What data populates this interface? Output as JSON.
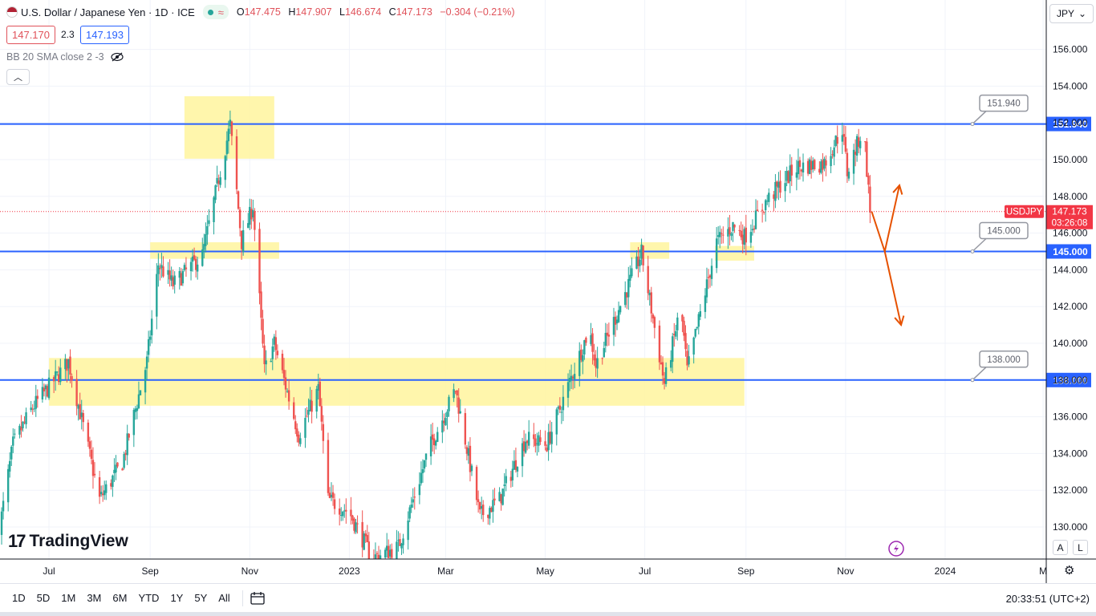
{
  "legend": {
    "title": "U.S. Dollar / Japanese Yen · 1D · ICE",
    "ohlc": {
      "o_label": "O",
      "o": "147.475",
      "h_label": "H",
      "h": "147.907",
      "l_label": "L",
      "l": "146.674",
      "c_label": "C",
      "c": "147.173",
      "change": "−0.304 (−0.21%)"
    },
    "bid": "147.170",
    "spread": "2.3",
    "ask": "147.193",
    "indicator": "BB 20 SMA close 2 -3"
  },
  "currency_selector": "JPY",
  "symbol_tag": "USDJPY",
  "last_price": "147.173",
  "countdown": "03:26:08",
  "logo_text": "TradingView",
  "scale_buttons": [
    "A",
    "L"
  ],
  "timeframes": [
    "1D",
    "5D",
    "1M",
    "3M",
    "6M",
    "YTD",
    "1Y",
    "5Y",
    "All"
  ],
  "clock": "20:33:51 (UTC+2)",
  "colors": {
    "up": "#26a69a",
    "down": "#ef5350",
    "level_line": "#2962ff",
    "zone_fill": "#fff59d",
    "projection_arrow": "#e65100",
    "last_price_tag": "#f23645"
  },
  "chart_data": {
    "type": "candlestick",
    "ylim": [
      128.5,
      157.5
    ],
    "y_ticks": [
      "130.000",
      "132.000",
      "134.000",
      "136.000",
      "138.000",
      "140.000",
      "142.000",
      "144.000",
      "146.000",
      "148.000",
      "150.000",
      "152.000",
      "154.000",
      "156.000"
    ],
    "x_ticks": [
      "Jul",
      "Sep",
      "Nov",
      "2023",
      "Mar",
      "May",
      "Jul",
      "Sep",
      "Nov",
      "2024",
      "M"
    ],
    "x_range": [
      "2022-06-01",
      "2024-02-28"
    ],
    "levels": [
      {
        "value": 151.94,
        "label": "151.940"
      },
      {
        "value": 145.0,
        "label": "145.000"
      },
      {
        "value": 138.0,
        "label": "138.000"
      }
    ],
    "zones": [
      {
        "from": "2022-09-22",
        "to": "2022-11-16",
        "low": 150.05,
        "high": 153.45
      },
      {
        "from": "2022-09-01",
        "to": "2022-11-19",
        "low": 144.6,
        "high": 145.5
      },
      {
        "from": "2022-07-01",
        "to": "2023-08-31",
        "low": 136.6,
        "high": 139.2
      },
      {
        "from": "2023-06-22",
        "to": "2023-07-16",
        "low": 144.6,
        "high": 145.5
      },
      {
        "from": "2023-08-13",
        "to": "2023-09-06",
        "low": 144.5,
        "high": 145.3
      }
    ],
    "projection": [
      {
        "date": "2023-11-17",
        "value": 147.17
      },
      {
        "date": "2023-11-25",
        "value": 145.0
      },
      {
        "date": "2023-12-04",
        "value": 148.6
      },
      {
        "date": "2023-11-25",
        "value": 145.0
      },
      {
        "date": "2023-12-05",
        "value": 141.0
      }
    ],
    "anchors": [
      {
        "date": "2022-06-01",
        "value": 129.5
      },
      {
        "date": "2022-06-10",
        "value": 134.5
      },
      {
        "date": "2022-06-22",
        "value": 136.5
      },
      {
        "date": "2022-07-14",
        "value": 139.0
      },
      {
        "date": "2022-08-02",
        "value": 131.5
      },
      {
        "date": "2022-08-16",
        "value": 133.5
      },
      {
        "date": "2022-08-31",
        "value": 139.0
      },
      {
        "date": "2022-09-07",
        "value": 144.3
      },
      {
        "date": "2022-09-16",
        "value": 143.2
      },
      {
        "date": "2022-10-04",
        "value": 144.8
      },
      {
        "date": "2022-10-21",
        "value": 151.9
      },
      {
        "date": "2022-10-28",
        "value": 145.5
      },
      {
        "date": "2022-11-04",
        "value": 147.5
      },
      {
        "date": "2022-11-11",
        "value": 138.5
      },
      {
        "date": "2022-11-17",
        "value": 140.0
      },
      {
        "date": "2022-12-02",
        "value": 135.0
      },
      {
        "date": "2022-12-14",
        "value": 137.5
      },
      {
        "date": "2022-12-20",
        "value": 131.5
      },
      {
        "date": "2023-01-02",
        "value": 130.8
      },
      {
        "date": "2023-01-16",
        "value": 128.3
      },
      {
        "date": "2023-02-01",
        "value": 128.9
      },
      {
        "date": "2023-02-20",
        "value": 134.3
      },
      {
        "date": "2023-03-08",
        "value": 137.5
      },
      {
        "date": "2023-03-23",
        "value": 130.6
      },
      {
        "date": "2023-04-04",
        "value": 131.5
      },
      {
        "date": "2023-04-20",
        "value": 134.8
      },
      {
        "date": "2023-05-03",
        "value": 134.5
      },
      {
        "date": "2023-05-29",
        "value": 140.8
      },
      {
        "date": "2023-06-02",
        "value": 138.8
      },
      {
        "date": "2023-06-30",
        "value": 144.9
      },
      {
        "date": "2023-07-14",
        "value": 137.8
      },
      {
        "date": "2023-07-24",
        "value": 142.0
      },
      {
        "date": "2023-07-28",
        "value": 138.5
      },
      {
        "date": "2023-08-15",
        "value": 145.5
      },
      {
        "date": "2023-08-25",
        "value": 146.4
      },
      {
        "date": "2023-09-01",
        "value": 145.8
      },
      {
        "date": "2023-09-15",
        "value": 147.8
      },
      {
        "date": "2023-10-03",
        "value": 149.6
      },
      {
        "date": "2023-10-20",
        "value": 149.8
      },
      {
        "date": "2023-10-31",
        "value": 151.7
      },
      {
        "date": "2023-11-03",
        "value": 149.3
      },
      {
        "date": "2023-11-13",
        "value": 151.8
      },
      {
        "date": "2023-11-17",
        "value": 147.17
      }
    ]
  }
}
